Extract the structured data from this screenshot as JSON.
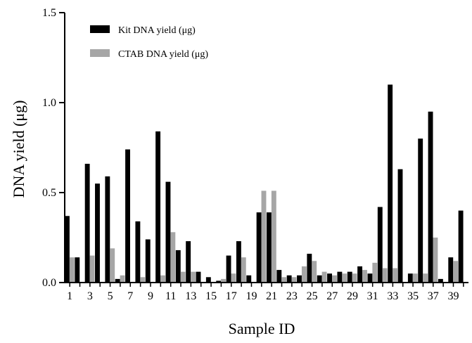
{
  "chart_data": {
    "type": "bar",
    "xlabel": "Sample ID",
    "ylabel": "DNA yield (μg)",
    "ylim": [
      0,
      1.5
    ],
    "y_ticks": [
      "0.0",
      "0.5",
      "1.0",
      "1.5"
    ],
    "x_tick_labels": [
      "1",
      "3",
      "5",
      "7",
      "9",
      "11",
      "13",
      "15",
      "17",
      "19",
      "21",
      "23",
      "25",
      "27",
      "29",
      "31",
      "33",
      "35",
      "37",
      "39"
    ],
    "legend_position": "top-left",
    "categories": [
      "1",
      "2",
      "3",
      "4",
      "5",
      "6",
      "7",
      "8",
      "9",
      "10",
      "11",
      "12",
      "13",
      "14",
      "15",
      "16",
      "17",
      "18",
      "19",
      "20",
      "21",
      "22",
      "23",
      "24",
      "25",
      "26",
      "27",
      "28",
      "29",
      "30",
      "31",
      "32",
      "33",
      "34",
      "35",
      "36",
      "37",
      "38",
      "39",
      "40"
    ],
    "series": [
      {
        "name": "Kit DNA yield (μg)",
        "color": "#000000",
        "values": [
          0.37,
          0.14,
          0.66,
          0.55,
          0.59,
          0.02,
          0.74,
          0.34,
          0.24,
          0.84,
          0.56,
          0.18,
          0.23,
          0.06,
          0.03,
          0.01,
          0.15,
          0.23,
          0.04,
          0.39,
          0.39,
          0.07,
          0.04,
          0.04,
          0.16,
          0.04,
          0.05,
          0.06,
          0.06,
          0.09,
          0.05,
          0.42,
          1.1,
          0.63,
          0.05,
          0.8,
          0.95,
          0.02,
          0.14,
          0.4
        ]
      },
      {
        "name": "CTAB DNA yield (μg)",
        "color": "#a6a6a6",
        "values": [
          0.14,
          0.0,
          0.15,
          0.0,
          0.19,
          0.04,
          0.0,
          0.03,
          0.0,
          0.04,
          0.28,
          0.06,
          0.06,
          0.0,
          0.0,
          0.02,
          0.05,
          0.14,
          0.0,
          0.51,
          0.51,
          0.03,
          0.03,
          0.09,
          0.12,
          0.06,
          0.04,
          0.05,
          0.05,
          0.07,
          0.11,
          0.08,
          0.08,
          0.0,
          0.05,
          0.05,
          0.25,
          0.0,
          0.12,
          0.0
        ]
      }
    ]
  }
}
